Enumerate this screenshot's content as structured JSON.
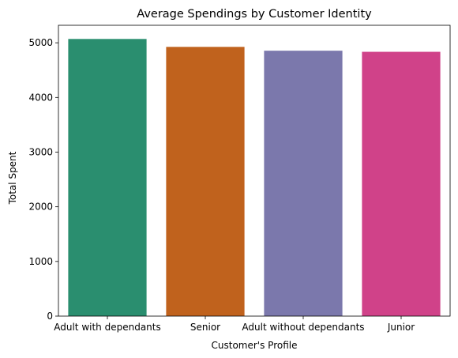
{
  "chart_data": {
    "type": "bar",
    "title": "Average Spendings by Customer Identity",
    "xlabel": "Customer's Profile",
    "ylabel": "Total Spent",
    "categories": [
      "Adult with dependants",
      "Senior",
      "Adult without dependants",
      "Junior"
    ],
    "values": [
      5070,
      4925,
      4855,
      4835
    ],
    "colors": [
      "#2a8e6f",
      "#c0621d",
      "#7b78ac",
      "#d04289"
    ],
    "ylim": [
      0,
      5320
    ],
    "yticks": [
      0,
      1000,
      2000,
      3000,
      4000,
      5000
    ],
    "grid": false,
    "legend": "none"
  }
}
